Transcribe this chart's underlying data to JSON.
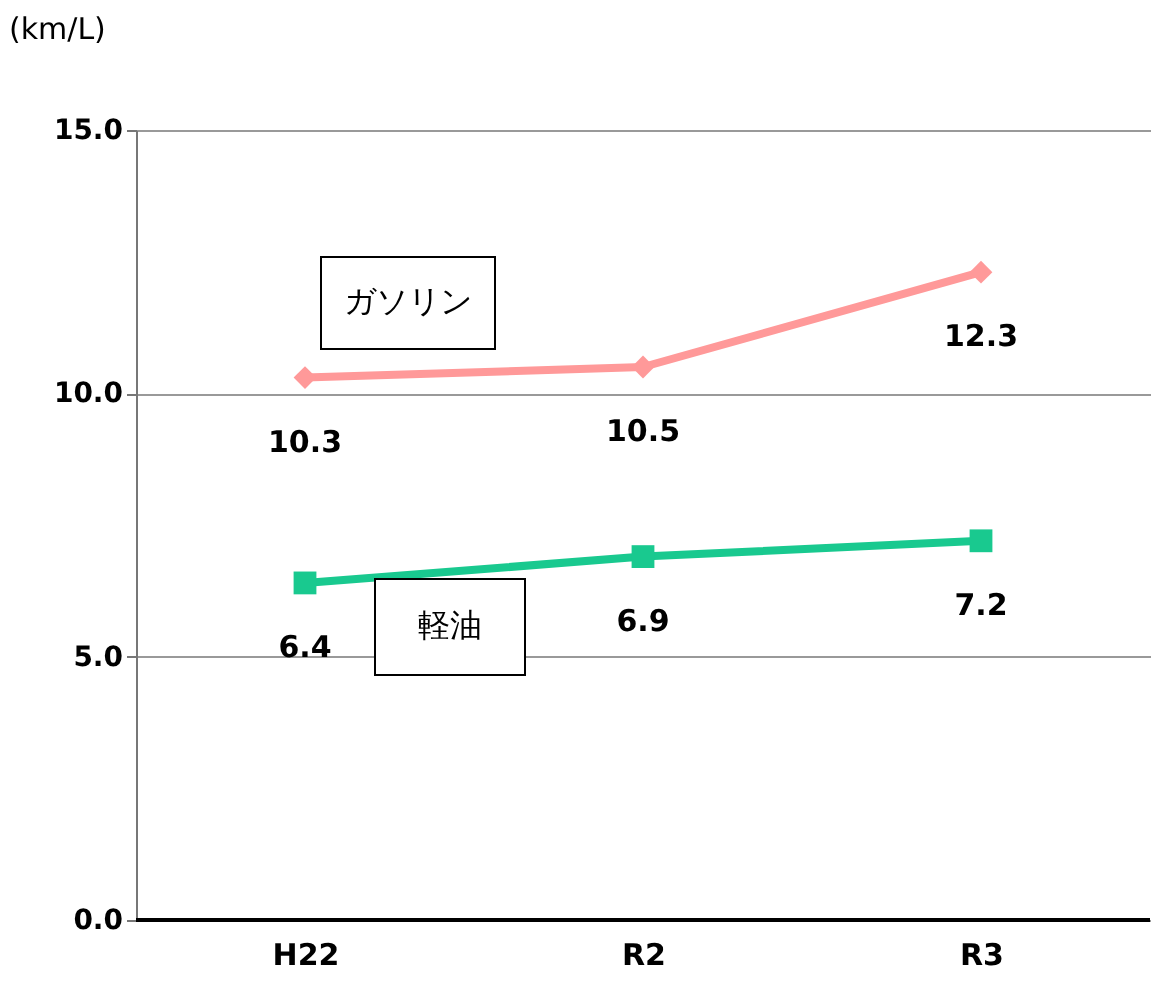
{
  "chart_data": {
    "type": "line",
    "ylabel": "(km/L)",
    "categories": [
      "H22",
      "R2",
      "R3"
    ],
    "series": [
      {
        "name": "ガソリン",
        "color": "#ff9999",
        "marker": "diamond",
        "values": [
          10.3,
          10.5,
          12.3
        ]
      },
      {
        "name": "軽油",
        "color": "#19c98f",
        "marker": "square",
        "values": [
          6.4,
          6.9,
          7.2
        ]
      }
    ],
    "ylim": [
      0,
      15
    ],
    "yticks": [
      {
        "value": 0,
        "label": "0.0"
      },
      {
        "value": 5,
        "label": "5.0"
      },
      {
        "value": 10,
        "label": "10.0"
      },
      {
        "value": 15,
        "label": "15.0"
      }
    ],
    "grid": "y",
    "legend": false,
    "data_labels": true
  }
}
